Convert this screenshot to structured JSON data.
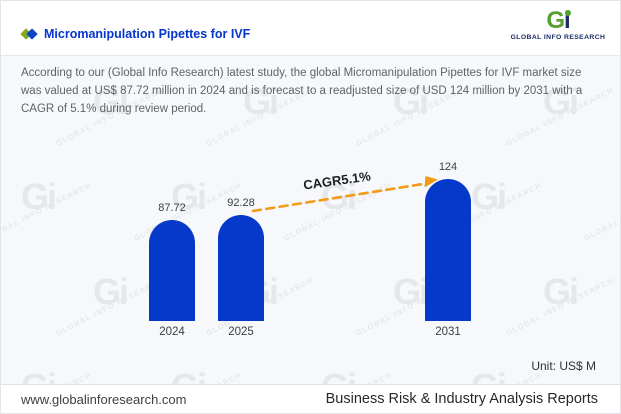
{
  "header": {
    "title": "Micromanipulation Pipettes for IVF",
    "logo": {
      "mark_g": "G",
      "mark_i": "i",
      "caption": "GLOBAL INFO RESEARCH"
    }
  },
  "summary": "According to our (Global Info Research) latest study, the global Micromanipulation Pipettes for IVF market size was valued at US$ 87.72 million in 2024 and is forecast to a readjusted size of USD 124 million by 2031 with a CAGR of 5.1% during review period.",
  "chart_data": {
    "type": "bar",
    "title": "Micromanipulation Pipettes for IVF market size",
    "categories": [
      "2024",
      "2025",
      "2031"
    ],
    "values": [
      87.72,
      92.28,
      124
    ],
    "value_labels": [
      "87.72",
      "92.28",
      "124"
    ],
    "ylim": [
      0,
      140
    ],
    "grid": false,
    "legend": false,
    "bar_color": "#0539c9",
    "arrow_color": "#f29b16",
    "cagr_label": "CAGR5.1%",
    "unit_label": "Unit: US$ M"
  },
  "watermark": {
    "mark": "Gi",
    "text": "GLOBAL INFO RESEARCH"
  },
  "footer": {
    "website": "www.globalinforesearch.com",
    "tagline": "Business Risk & Industry Analysis Reports"
  }
}
